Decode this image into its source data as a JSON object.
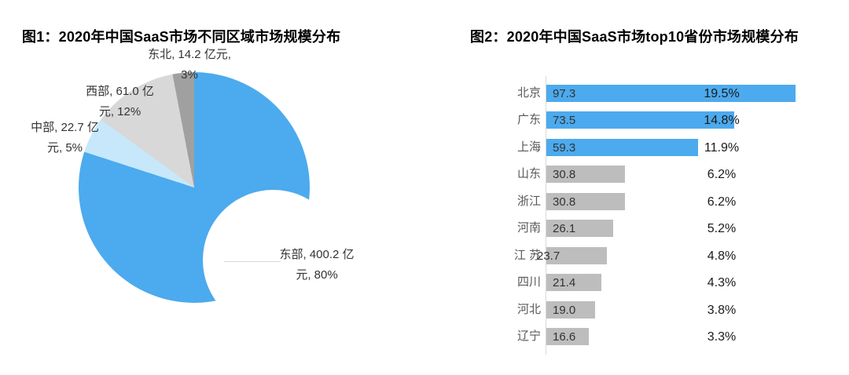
{
  "page": {
    "background_color": "#ffffff"
  },
  "colors": {
    "accent_blue": "#4CAAEE",
    "light_blue": "#C7E8FB",
    "light_gray": "#D8D8D8",
    "dark_gray": "#A0A0A0",
    "bar_gray": "#BDBDBD",
    "axis_gray": "#D9D9D9"
  },
  "chart_data": [
    {
      "type": "pie",
      "subtype": "donut",
      "title": "图1：2020年中国SaaS市场不同区域市场规模分布",
      "categories": [
        "东部",
        "中部",
        "西部",
        "东北"
      ],
      "values": [
        400.2,
        22.7,
        61.0,
        14.2
      ],
      "unit": "亿元",
      "percents": [
        80,
        5,
        12,
        3
      ],
      "colors": [
        "#4CAAEE",
        "#C7E8FB",
        "#D8D8D8",
        "#A0A0A0"
      ],
      "start_angle_deg": 0,
      "direction": "clockwise",
      "legend": "none",
      "labels": [
        {
          "category": "东部",
          "lines": [
            "东部, 400.2 亿",
            "元, 80%"
          ]
        },
        {
          "category": "中部",
          "lines": [
            "中部, 22.7 亿",
            "元, 5%"
          ]
        },
        {
          "category": "西部",
          "lines": [
            "西部, 61.0 亿",
            "元, 12%"
          ]
        },
        {
          "category": "东北",
          "lines": [
            "东北, 14.2 亿元,",
            "3%"
          ]
        }
      ]
    },
    {
      "type": "bar",
      "orientation": "horizontal",
      "title": "图2：2020年中国SaaS市场top10省份市场规模分布",
      "categories": [
        "北京",
        "广东",
        "上海",
        "山东",
        "浙江",
        "河南",
        "江 苏",
        "四川",
        "河北",
        "辽宁"
      ],
      "values": [
        97.3,
        73.5,
        59.3,
        30.8,
        30.8,
        26.1,
        23.7,
        21.4,
        19.0,
        16.6
      ],
      "value_labels": [
        "97.3",
        "73.5",
        "59.3",
        "30.8",
        "30.8",
        "26.1",
        "23.7",
        "21.4",
        "19.0",
        "16.6"
      ],
      "pct_labels": [
        "19.5%",
        "14.8%",
        "11.9%",
        "6.2%",
        "6.2%",
        "5.2%",
        "4.8%",
        "4.3%",
        "3.8%",
        "3.3%"
      ],
      "highlight_top": 3,
      "bar_colors": {
        "top3": "#4CAAEE",
        "rest": "#BDBDBD"
      },
      "xlim": [
        0,
        100
      ],
      "grid": "off",
      "legend": "none"
    }
  ]
}
